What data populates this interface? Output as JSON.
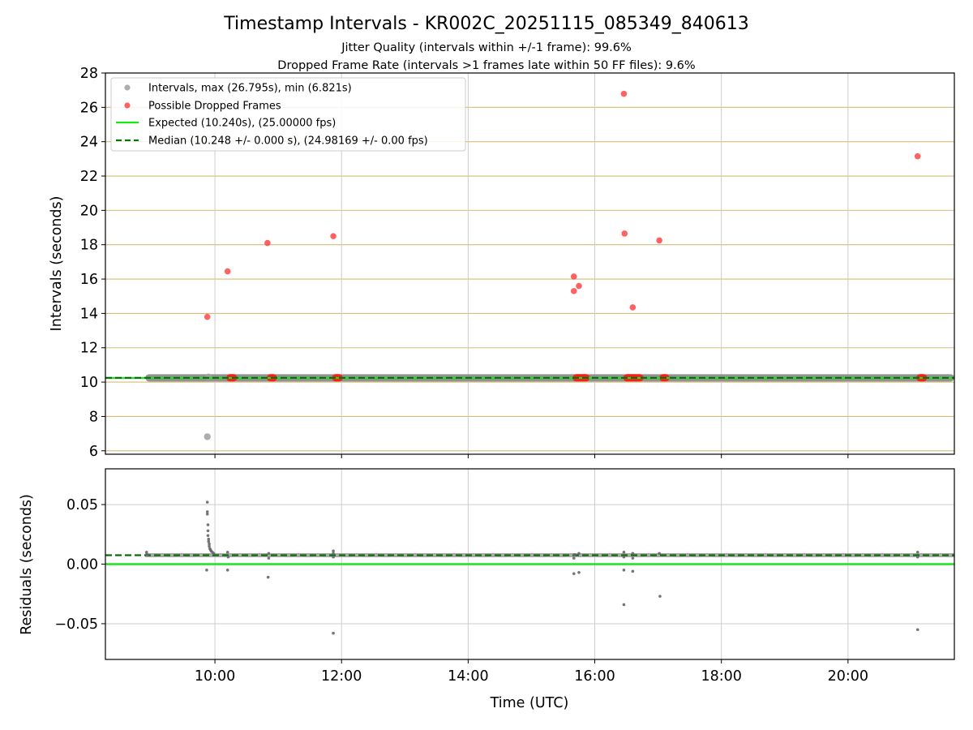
{
  "chart_data": {
    "title": "Timestamp Intervals - KR002C_20251115_085349_840613",
    "subtitle_1": "Jitter Quality (intervals within +/-1 frame): 99.6%",
    "subtitle_2": "Dropped Frame Rate (intervals >1 frames late within 50 FF files): 9.6%",
    "xlabel": "Time (UTC)",
    "top_panel": {
      "type": "scatter",
      "ylabel": "Intervals (seconds)",
      "xlim": [
        8.27,
        21.68
      ],
      "ylim": [
        5.8,
        28
      ],
      "yticks": [
        6,
        8,
        10,
        12,
        14,
        16,
        18,
        20,
        22,
        24,
        26,
        28
      ],
      "xticks": [
        "10:00",
        "12:00",
        "14:00",
        "16:00",
        "18:00",
        "20:00"
      ],
      "xtick_values": [
        10,
        12,
        14,
        16,
        18,
        20
      ],
      "grid": true,
      "legend_position": "upper-left",
      "legend": [
        {
          "label": "Intervals, max (26.795s), min (6.821s)",
          "marker": "circle",
          "color": "#a0a0a0"
        },
        {
          "label": "Possible Dropped Frames",
          "marker": "circle",
          "color": "#ff4444"
        },
        {
          "label": "Expected (10.240s), (25.00000 fps)",
          "marker": "line",
          "color": "#19e619"
        },
        {
          "label": "Median (10.248 +/- 0.000 s), (24.98169 +/- 0.00 fps)",
          "marker": "dashed",
          "color": "#007a00"
        }
      ],
      "expected_value": 10.24,
      "median_value": 10.248,
      "interval_band": {
        "x_start": 8.9,
        "x_end": 21.68,
        "y": 10.248
      },
      "interval_outliers": [
        {
          "x": 9.88,
          "y": 6.82
        },
        {
          "x": 9.9,
          "y": 10.3
        }
      ],
      "dropped_frames": [
        {
          "x": 9.88,
          "y": 13.8
        },
        {
          "x": 10.2,
          "y": 16.45
        },
        {
          "x": 10.83,
          "y": 18.1
        },
        {
          "x": 11.87,
          "y": 18.5
        },
        {
          "x": 15.67,
          "y": 16.15
        },
        {
          "x": 15.67,
          "y": 15.3
        },
        {
          "x": 15.75,
          "y": 15.6
        },
        {
          "x": 16.46,
          "y": 26.79
        },
        {
          "x": 16.47,
          "y": 18.65
        },
        {
          "x": 16.6,
          "y": 14.35
        },
        {
          "x": 17.02,
          "y": 18.25
        },
        {
          "x": 21.1,
          "y": 23.15
        }
      ],
      "dropped_clusters": [
        {
          "x_start": 10.18,
          "x_end": 10.35,
          "y": 10.25
        },
        {
          "x_start": 10.82,
          "x_end": 10.98,
          "y": 10.25
        },
        {
          "x_start": 11.85,
          "x_end": 12.02,
          "y": 10.25
        },
        {
          "x_start": 15.65,
          "x_end": 15.92,
          "y": 10.25
        },
        {
          "x_start": 16.45,
          "x_end": 16.77,
          "y": 10.25
        },
        {
          "x_start": 17.02,
          "x_end": 17.18,
          "y": 10.25
        },
        {
          "x_start": 21.08,
          "x_end": 21.25,
          "y": 10.25
        }
      ]
    },
    "bottom_panel": {
      "type": "scatter",
      "ylabel": "Residuals (seconds)",
      "ylim": [
        -0.08,
        0.08
      ],
      "yticks": [
        -0.05,
        0.0,
        0.05
      ],
      "ytick_labels": [
        "−0.05",
        "0.00",
        "0.05"
      ],
      "expected_value": 0.0,
      "median_value": 0.0075,
      "band": {
        "x_start": 8.9,
        "x_end": 21.68,
        "y": 0.0075
      },
      "points": [
        {
          "x": 8.92,
          "y": 0.01
        },
        {
          "x": 8.93,
          "y": 0.008
        },
        {
          "x": 9.88,
          "y": 0.052
        },
        {
          "x": 9.88,
          "y": 0.044
        },
        {
          "x": 9.88,
          "y": 0.042
        },
        {
          "x": 9.89,
          "y": 0.033
        },
        {
          "x": 9.89,
          "y": 0.028
        },
        {
          "x": 9.89,
          "y": 0.024
        },
        {
          "x": 9.9,
          "y": 0.021
        },
        {
          "x": 9.9,
          "y": 0.019
        },
        {
          "x": 9.91,
          "y": 0.017
        },
        {
          "x": 9.91,
          "y": 0.015
        },
        {
          "x": 9.92,
          "y": 0.013
        },
        {
          "x": 9.93,
          "y": 0.012
        },
        {
          "x": 9.94,
          "y": 0.011
        },
        {
          "x": 9.96,
          "y": 0.01
        },
        {
          "x": 9.98,
          "y": 0.009
        },
        {
          "x": 9.87,
          "y": -0.005
        },
        {
          "x": 10.2,
          "y": 0.01
        },
        {
          "x": 10.21,
          "y": 0.006
        },
        {
          "x": 10.2,
          "y": -0.005
        },
        {
          "x": 10.85,
          "y": 0.009
        },
        {
          "x": 10.85,
          "y": 0.005
        },
        {
          "x": 10.84,
          "y": -0.011
        },
        {
          "x": 11.87,
          "y": 0.011
        },
        {
          "x": 11.87,
          "y": 0.009
        },
        {
          "x": 11.87,
          "y": 0.006
        },
        {
          "x": 11.87,
          "y": -0.058
        },
        {
          "x": 15.68,
          "y": 0.008
        },
        {
          "x": 15.67,
          "y": 0.005
        },
        {
          "x": 15.67,
          "y": -0.008
        },
        {
          "x": 15.75,
          "y": 0.009
        },
        {
          "x": 15.75,
          "y": -0.007
        },
        {
          "x": 16.46,
          "y": 0.01
        },
        {
          "x": 16.46,
          "y": 0.006
        },
        {
          "x": 16.46,
          "y": -0.005
        },
        {
          "x": 16.46,
          "y": -0.034
        },
        {
          "x": 16.6,
          "y": 0.009
        },
        {
          "x": 16.6,
          "y": 0.005
        },
        {
          "x": 16.6,
          "y": -0.006
        },
        {
          "x": 17.02,
          "y": 0.009
        },
        {
          "x": 17.03,
          "y": -0.027
        },
        {
          "x": 21.1,
          "y": 0.01
        },
        {
          "x": 21.1,
          "y": 0.006
        },
        {
          "x": 21.1,
          "y": -0.055
        }
      ]
    }
  }
}
